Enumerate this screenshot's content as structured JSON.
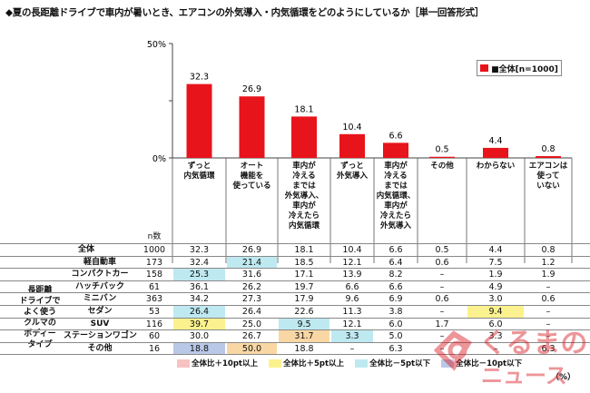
{
  "chart_data": {
    "type": "bar",
    "title": "◆夏の長距離ドライブで車内が暑いとき、エアコンの外気導入・内気循環をどのようにしているか［単一回答形式］",
    "ylim": [
      0,
      50
    ],
    "yticks": [
      "50%",
      "",
      "0%"
    ],
    "legend": "■全体[n=1000]",
    "legend_placement": "top-right",
    "bar_color": "#e8141b",
    "categories": [
      "ずっと\n内気循環",
      "オート\n機能を\n使っている",
      "車内が\n冷える\nまでは\n外気導入、\n車内が\n冷えたら\n内気循環",
      "ずっと\n外気導入",
      "車内が\n冷える\nまでは\n内気循環、\n車内が\n冷えたら\n外気導入",
      "その他",
      "わからない",
      "エアコンは\n使って\nいない"
    ],
    "values": [
      32.3,
      26.9,
      18.1,
      10.4,
      6.6,
      0.5,
      4.4,
      0.8
    ],
    "value_labels": [
      "32.3",
      "26.9",
      "18.1",
      "10.4",
      "6.6",
      "0.5",
      "4.4",
      "0.8"
    ]
  },
  "table": {
    "n_header": "n数",
    "group_label": "長距離\nドライブで\nよく使う\nクルマの\nボディー\nタイプ",
    "rows": [
      {
        "label": "全体",
        "n": "1000",
        "cells": [
          "32.3",
          "26.9",
          "18.1",
          "10.4",
          "6.6",
          "0.5",
          "4.4",
          "0.8"
        ],
        "hl": [
          "",
          "",
          "",
          "",
          "",
          "",
          "",
          ""
        ]
      },
      {
        "label": "軽自動車",
        "n": "173",
        "cells": [
          "32.4",
          "21.4",
          "18.5",
          "12.1",
          "6.4",
          "0.6",
          "7.5",
          "1.2"
        ],
        "hl": [
          "",
          "cyan",
          "",
          "",
          "",
          "",
          "",
          ""
        ]
      },
      {
        "label": "コンパクトカー",
        "n": "158",
        "cells": [
          "25.3",
          "31.6",
          "17.1",
          "13.9",
          "8.2",
          "–",
          "1.9",
          "1.9"
        ],
        "hl": [
          "cyan",
          "",
          "",
          "",
          "",
          "",
          "",
          ""
        ]
      },
      {
        "label": "ハッチバック",
        "n": "61",
        "cells": [
          "36.1",
          "26.2",
          "19.7",
          "6.6",
          "6.6",
          "–",
          "4.9",
          "–"
        ],
        "hl": [
          "",
          "",
          "",
          "",
          "",
          "",
          "",
          ""
        ]
      },
      {
        "label": "ミニバン",
        "n": "363",
        "cells": [
          "34.2",
          "27.3",
          "17.9",
          "9.6",
          "6.9",
          "0.6",
          "3.0",
          "0.6"
        ],
        "hl": [
          "",
          "",
          "",
          "",
          "",
          "",
          "",
          ""
        ]
      },
      {
        "label": "セダン",
        "n": "53",
        "cells": [
          "26.4",
          "26.4",
          "22.6",
          "11.3",
          "3.8",
          "–",
          "9.4",
          "–"
        ],
        "hl": [
          "cyan",
          "",
          "",
          "",
          "",
          "",
          "yellow",
          ""
        ]
      },
      {
        "label": "SUV",
        "n": "116",
        "cells": [
          "39.7",
          "25.0",
          "9.5",
          "12.1",
          "6.0",
          "1.7",
          "6.0",
          "–"
        ],
        "hl": [
          "yellow",
          "",
          "cyan",
          "",
          "",
          "",
          "",
          ""
        ]
      },
      {
        "label": "ステーションワゴン",
        "n": "60",
        "cells": [
          "30.0",
          "26.7",
          "31.7",
          "3.3",
          "5.0",
          "–",
          "3.3",
          "–"
        ],
        "hl": [
          "",
          "",
          "orange",
          "cyan",
          "",
          "",
          "",
          ""
        ]
      },
      {
        "label": "その他",
        "n": "16",
        "cells": [
          "18.8",
          "50.0",
          "18.8",
          "–",
          "6.3",
          "–",
          "–",
          "6.3"
        ],
        "hl": [
          "blue",
          "orange",
          "",
          "",
          "",
          "",
          "",
          ""
        ]
      }
    ]
  },
  "bottom_legend": {
    "items": [
      {
        "label": "全体比＋10pt以上",
        "color": "#f6c3c0"
      },
      {
        "label": "全体比＋5pt以上",
        "color": "#fbf28f"
      },
      {
        "label": "全体比－5pt以下",
        "color": "#bfe9f1"
      },
      {
        "label": "全体比－10pt以下",
        "color": "#b9c8e6"
      }
    ],
    "unit": "（%）"
  },
  "watermark": {
    "text": "くるまの\nニュース",
    "icon": "car-logo-icon",
    "color": "#d9171e"
  }
}
